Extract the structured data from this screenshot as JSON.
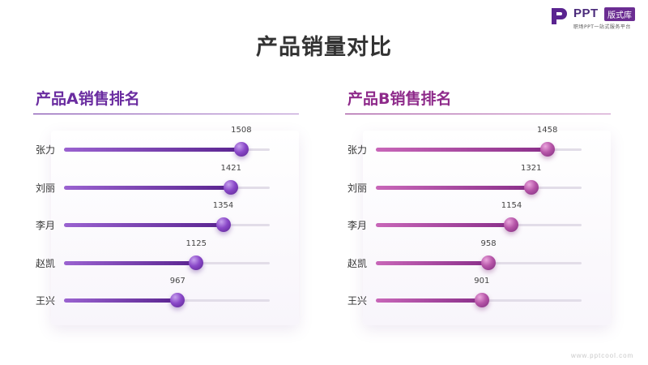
{
  "brand": {
    "name": "PPT",
    "badge": "版式库",
    "tagline": "职场PPT一站式服务平台",
    "footer_url": "www.pptcool.com",
    "colors": {
      "primary": "#6a2ca0",
      "secondary": "#8e2a8a"
    }
  },
  "title": "产品销量对比",
  "chart_data": [
    {
      "type": "bar",
      "title": "产品A销售排名",
      "categories": [
        "张力",
        "刘丽",
        "李月",
        "赵凯",
        "王兴"
      ],
      "values": [
        1508,
        1421,
        1354,
        1125,
        967
      ],
      "ylim": [
        0,
        1750
      ],
      "color": "#6a2ca0"
    },
    {
      "type": "bar",
      "title": "产品B销售排名",
      "categories": [
        "张力",
        "刘丽",
        "李月",
        "赵凯",
        "王兴"
      ],
      "values": [
        1458,
        1321,
        1154,
        958,
        901
      ],
      "ylim": [
        0,
        1750
      ],
      "color": "#8e2a8a"
    }
  ]
}
